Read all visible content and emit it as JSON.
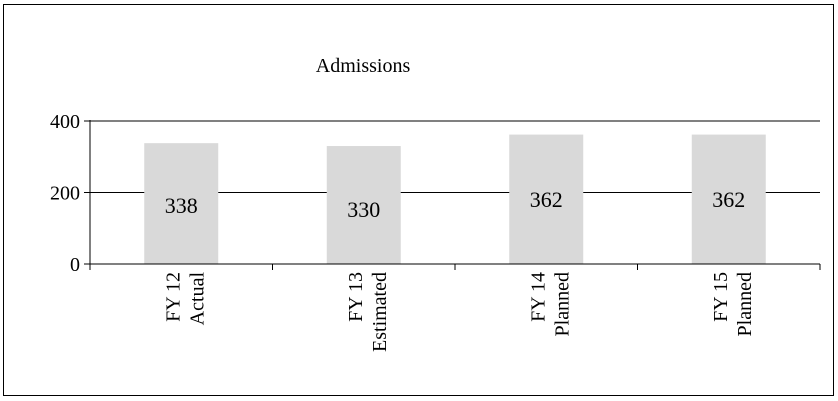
{
  "chart_data": {
    "type": "bar",
    "title": "Admissions",
    "categories": [
      [
        "FY 12",
        "Actual"
      ],
      [
        "FY 13",
        "Estimated"
      ],
      [
        "FY 14",
        "Planned"
      ],
      [
        "FY 15",
        "Planned"
      ]
    ],
    "values": [
      338,
      330,
      362,
      362
    ],
    "data_labels": [
      "338",
      "330",
      "362",
      "362"
    ],
    "ylim": [
      0,
      400
    ],
    "yticks": [
      0,
      200,
      400
    ],
    "ytick_labels": [
      "0",
      "200",
      "400"
    ],
    "grid": true,
    "legend": "none",
    "bar_color": "#d9d9d9"
  }
}
